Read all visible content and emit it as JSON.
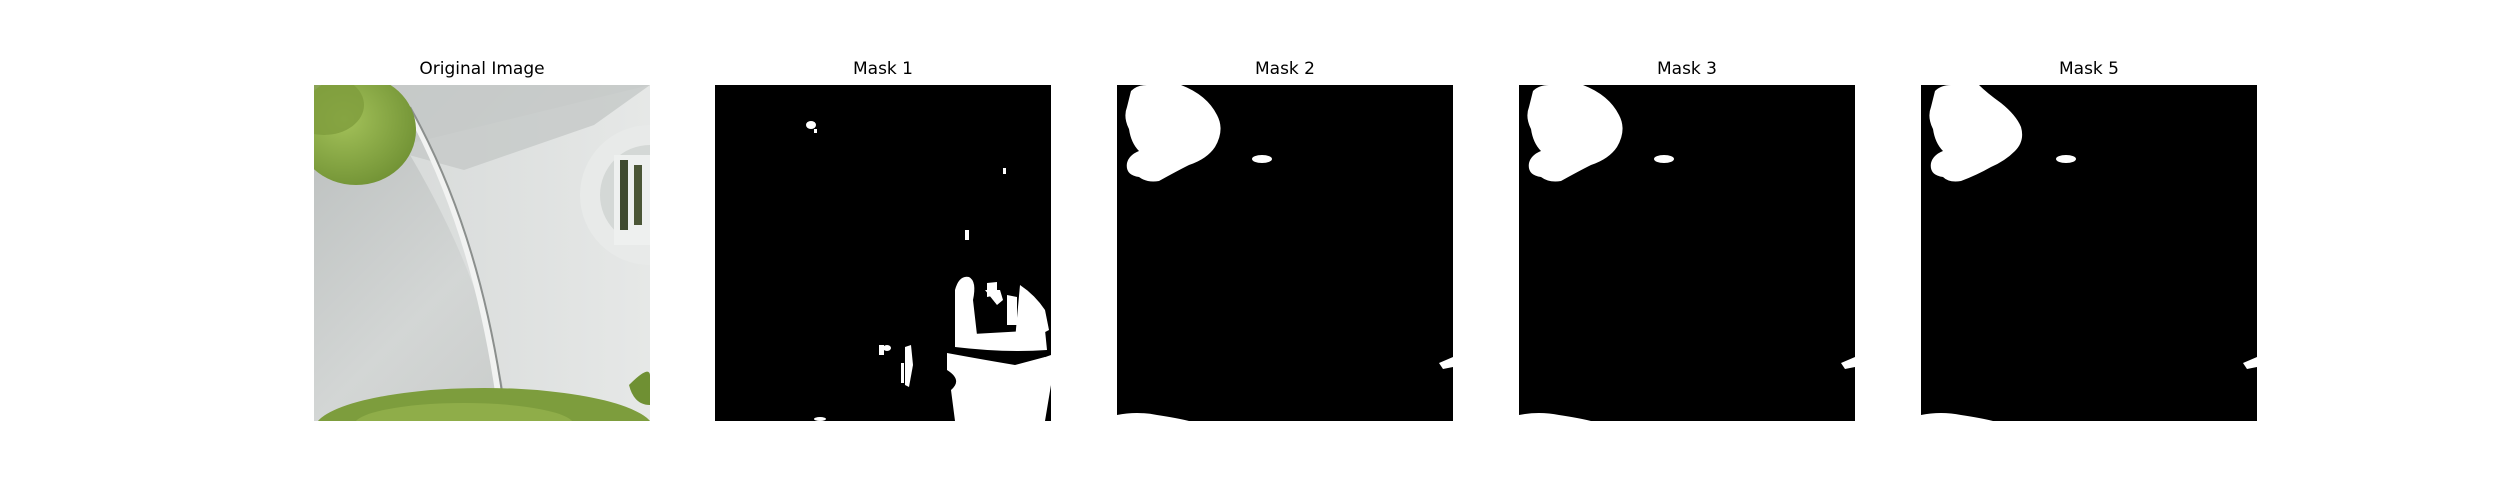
{
  "panels": [
    {
      "title": "Original Image"
    },
    {
      "title": "Mask 1"
    },
    {
      "title": "Mask 2"
    },
    {
      "title": "Mask 3"
    },
    {
      "title": "Mask 5"
    }
  ],
  "colors": {
    "mask_background": "#000000",
    "mask_foreground": "#ffffff",
    "leaf_green": "#8fb04a",
    "metal_gray": "#c9cccb"
  }
}
